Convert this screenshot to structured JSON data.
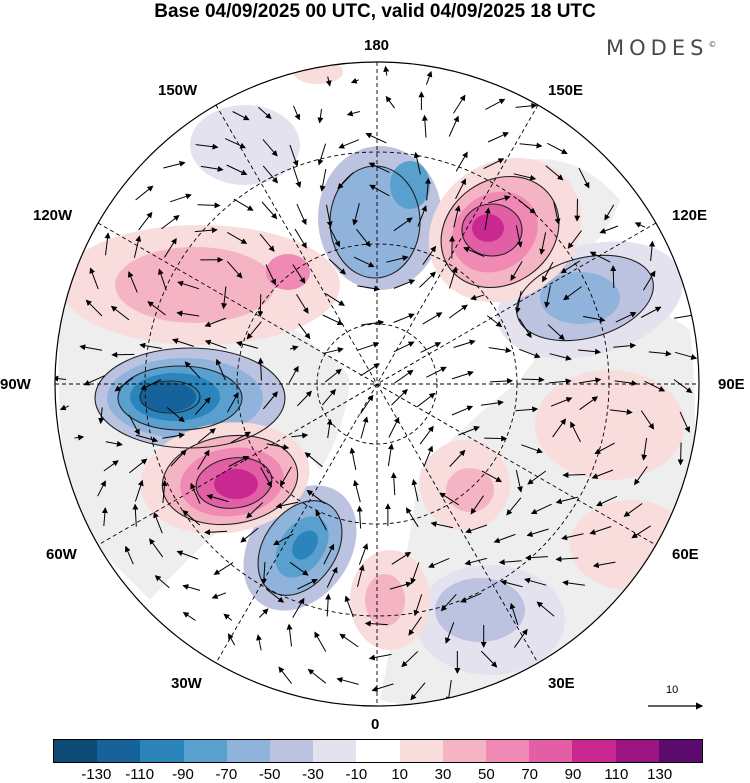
{
  "title": "Base 04/09/2025 00 UTC, valid 04/09/2025 18 UTC",
  "brand": "MODES",
  "brand_mark": "©",
  "longitude_labels": {
    "top": "180",
    "top_right": "150E",
    "upper_right": "120E",
    "right": "90E",
    "lower_right": "60E",
    "bottom_right": "30E",
    "bottom": "0",
    "bottom_left": "30W",
    "lower_left": "60W",
    "left": "90W",
    "upper_left": "120W",
    "top_left": "150W"
  },
  "vector_reference": {
    "value": "10"
  },
  "colorbar": {
    "colors": [
      "#0d4a74",
      "#15639a",
      "#2b84bb",
      "#5aa0cf",
      "#8fb3da",
      "#bcc3e0",
      "#e4e2ef",
      "#ffffff",
      "#f9dcdc",
      "#f5b4c3",
      "#f08ab4",
      "#e25fa6",
      "#c8288f",
      "#9c1480",
      "#5b0a6e"
    ],
    "labels": [
      "-130",
      "-110",
      "-90",
      "-70",
      "-50",
      "-30",
      "-10",
      "10",
      "30",
      "50",
      "70",
      "90",
      "110",
      "130"
    ]
  },
  "colors": {
    "background": "#ffffff",
    "graticule": "#000000",
    "land": "#eeeeee"
  }
}
